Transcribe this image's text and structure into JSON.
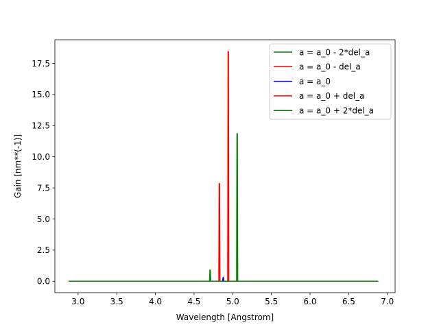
{
  "chart_data": {
    "type": "line",
    "xlabel": "Wavelength [Angstrom]",
    "ylabel": "Gain [nm**(-1)]",
    "xlim": [
      2.7,
      7.1
    ],
    "ylim": [
      -0.92,
      19.4
    ],
    "xticks": [
      3.0,
      3.5,
      4.0,
      4.5,
      5.0,
      5.5,
      6.0,
      6.5,
      7.0
    ],
    "xtick_labels": [
      "3.0",
      "3.5",
      "4.0",
      "4.5",
      "5.0",
      "5.5",
      "6.0",
      "6.5",
      "7.0"
    ],
    "yticks": [
      0.0,
      2.5,
      5.0,
      7.5,
      10.0,
      12.5,
      15.0,
      17.5
    ],
    "ytick_labels": [
      "0.0",
      "2.5",
      "5.0",
      "7.5",
      "10.0",
      "12.5",
      "15.0",
      "17.5"
    ],
    "legend_position": "upper-right",
    "series": [
      {
        "name": "a = a_0 - 2*del_a",
        "color": "#008000",
        "x": [
          2.88,
          4.7,
          4.705,
          4.71,
          4.715,
          6.88
        ],
        "y": [
          0,
          0,
          0.9,
          0.9,
          0,
          0
        ]
      },
      {
        "name": "a = a_0 - del_a",
        "color": "#ff0000",
        "x": [
          2.88,
          4.82,
          4.825,
          4.83,
          4.835,
          6.88
        ],
        "y": [
          0,
          0,
          7.85,
          7.85,
          0,
          0
        ]
      },
      {
        "name": "a = a_0",
        "color": "#0000ff",
        "x": [
          2.88,
          4.87,
          4.875,
          4.88,
          4.885,
          6.88
        ],
        "y": [
          0,
          0,
          0.3,
          0.3,
          0,
          0
        ]
      },
      {
        "name": "a = a_0 + del_a",
        "color": "#ff0000",
        "x": [
          2.88,
          4.935,
          4.94,
          4.945,
          4.95,
          6.88
        ],
        "y": [
          0,
          0,
          18.45,
          18.45,
          0,
          0
        ]
      },
      {
        "name": "a = a_0 + 2*del_a",
        "color": "#008000",
        "x": [
          2.88,
          5.05,
          5.055,
          5.06,
          5.065,
          6.88
        ],
        "y": [
          0,
          0,
          11.85,
          11.85,
          0,
          0
        ]
      }
    ]
  }
}
